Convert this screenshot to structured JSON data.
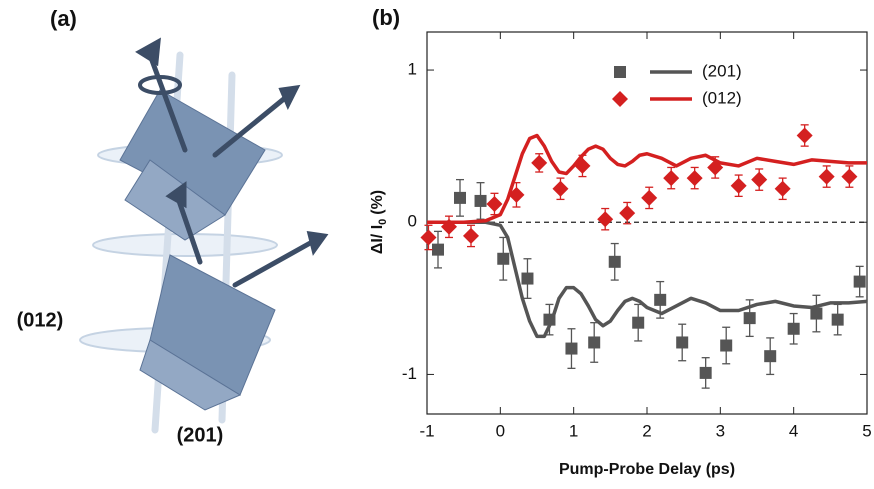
{
  "panel_a": {
    "label": "(a)",
    "plane_labels": [
      "(012)",
      "(201)"
    ]
  },
  "chart_data": {
    "type": "scatter",
    "panel_label": "(b)",
    "xlabel": "Pump-Probe Delay (ps)",
    "ylabel": "ΔI/ I",
    "ylabel_sub": "0",
    "ylabel_suffix": "(%)",
    "xlim": [
      -1,
      5
    ],
    "xticks": [
      -1,
      0,
      1,
      2,
      3,
      4,
      5
    ],
    "ylim": [
      -1.26,
      1.25
    ],
    "yticks": [
      -1,
      0,
      1
    ],
    "zero_line": true,
    "legend": "upper right",
    "series": [
      {
        "name": "(201)",
        "color": "#555555",
        "marker": "square",
        "x": [
          -0.85,
          -0.55,
          -0.27,
          0.04,
          0.37,
          0.67,
          0.97,
          1.28,
          1.56,
          1.88,
          2.18,
          2.48,
          2.8,
          3.08,
          3.4,
          3.68,
          4.0,
          4.31,
          4.6,
          4.9
        ],
        "values": [
          -0.18,
          0.16,
          0.14,
          -0.24,
          -0.37,
          -0.64,
          -0.83,
          -0.79,
          -0.26,
          -0.66,
          -0.51,
          -0.79,
          -0.99,
          -0.81,
          -0.63,
          -0.88,
          -0.7,
          -0.6,
          -0.64,
          -0.39
        ],
        "errors": [
          0.12,
          0.12,
          0.12,
          0.14,
          0.13,
          0.1,
          0.13,
          0.13,
          0.12,
          0.12,
          0.12,
          0.12,
          0.1,
          0.12,
          0.12,
          0.12,
          0.1,
          0.12,
          0.1,
          0.1
        ],
        "fit": {
          "x": [
            -1,
            -0.5,
            -0.2,
            0,
            0.1,
            0.2,
            0.3,
            0.4,
            0.5,
            0.6,
            0.7,
            0.8,
            0.9,
            1.0,
            1.1,
            1.2,
            1.3,
            1.4,
            1.5,
            1.6,
            1.7,
            1.8,
            1.9,
            2.0,
            2.2,
            2.4,
            2.6,
            2.8,
            3.0,
            3.25,
            3.5,
            3.75,
            4.0,
            4.25,
            4.5,
            4.75,
            5.0
          ],
          "values": [
            0,
            0,
            0,
            -0.02,
            -0.1,
            -0.3,
            -0.5,
            -0.65,
            -0.75,
            -0.75,
            -0.65,
            -0.5,
            -0.43,
            -0.43,
            -0.47,
            -0.55,
            -0.64,
            -0.68,
            -0.65,
            -0.58,
            -0.52,
            -0.5,
            -0.52,
            -0.56,
            -0.6,
            -0.55,
            -0.5,
            -0.53,
            -0.58,
            -0.58,
            -0.54,
            -0.52,
            -0.55,
            -0.56,
            -0.53,
            -0.53,
            -0.52
          ]
        }
      },
      {
        "name": "(012)",
        "color": "#d42020",
        "marker": "diamond",
        "x": [
          -0.98,
          -0.7,
          -0.4,
          -0.08,
          0.22,
          0.53,
          0.82,
          1.12,
          1.43,
          1.73,
          2.03,
          2.33,
          2.65,
          2.93,
          3.25,
          3.53,
          3.85,
          4.15,
          4.45,
          4.76
        ],
        "values": [
          -0.1,
          -0.03,
          -0.09,
          0.12,
          0.18,
          0.39,
          0.22,
          0.37,
          0.02,
          0.06,
          0.16,
          0.29,
          0.29,
          0.36,
          0.24,
          0.28,
          0.22,
          0.57,
          0.3,
          0.3
        ],
        "errors": [
          0.08,
          0.07,
          0.07,
          0.07,
          0.08,
          0.06,
          0.07,
          0.07,
          0.07,
          0.07,
          0.07,
          0.07,
          0.07,
          0.07,
          0.07,
          0.07,
          0.07,
          0.07,
          0.07,
          0.07
        ],
        "fit": {
          "x": [
            -1,
            -0.5,
            -0.2,
            0,
            0.1,
            0.2,
            0.3,
            0.4,
            0.5,
            0.6,
            0.7,
            0.8,
            0.9,
            1.0,
            1.1,
            1.2,
            1.3,
            1.4,
            1.5,
            1.6,
            1.7,
            1.8,
            1.9,
            2.0,
            2.2,
            2.4,
            2.6,
            2.8,
            3.0,
            3.25,
            3.5,
            3.75,
            4.0,
            4.25,
            4.5,
            4.75,
            5.0
          ],
          "values": [
            0,
            0,
            0.01,
            0.05,
            0.15,
            0.3,
            0.45,
            0.55,
            0.57,
            0.5,
            0.4,
            0.33,
            0.32,
            0.37,
            0.43,
            0.48,
            0.5,
            0.48,
            0.42,
            0.38,
            0.37,
            0.4,
            0.44,
            0.45,
            0.42,
            0.37,
            0.42,
            0.44,
            0.39,
            0.37,
            0.42,
            0.4,
            0.38,
            0.41,
            0.4,
            0.39,
            0.39
          ]
        }
      }
    ]
  }
}
